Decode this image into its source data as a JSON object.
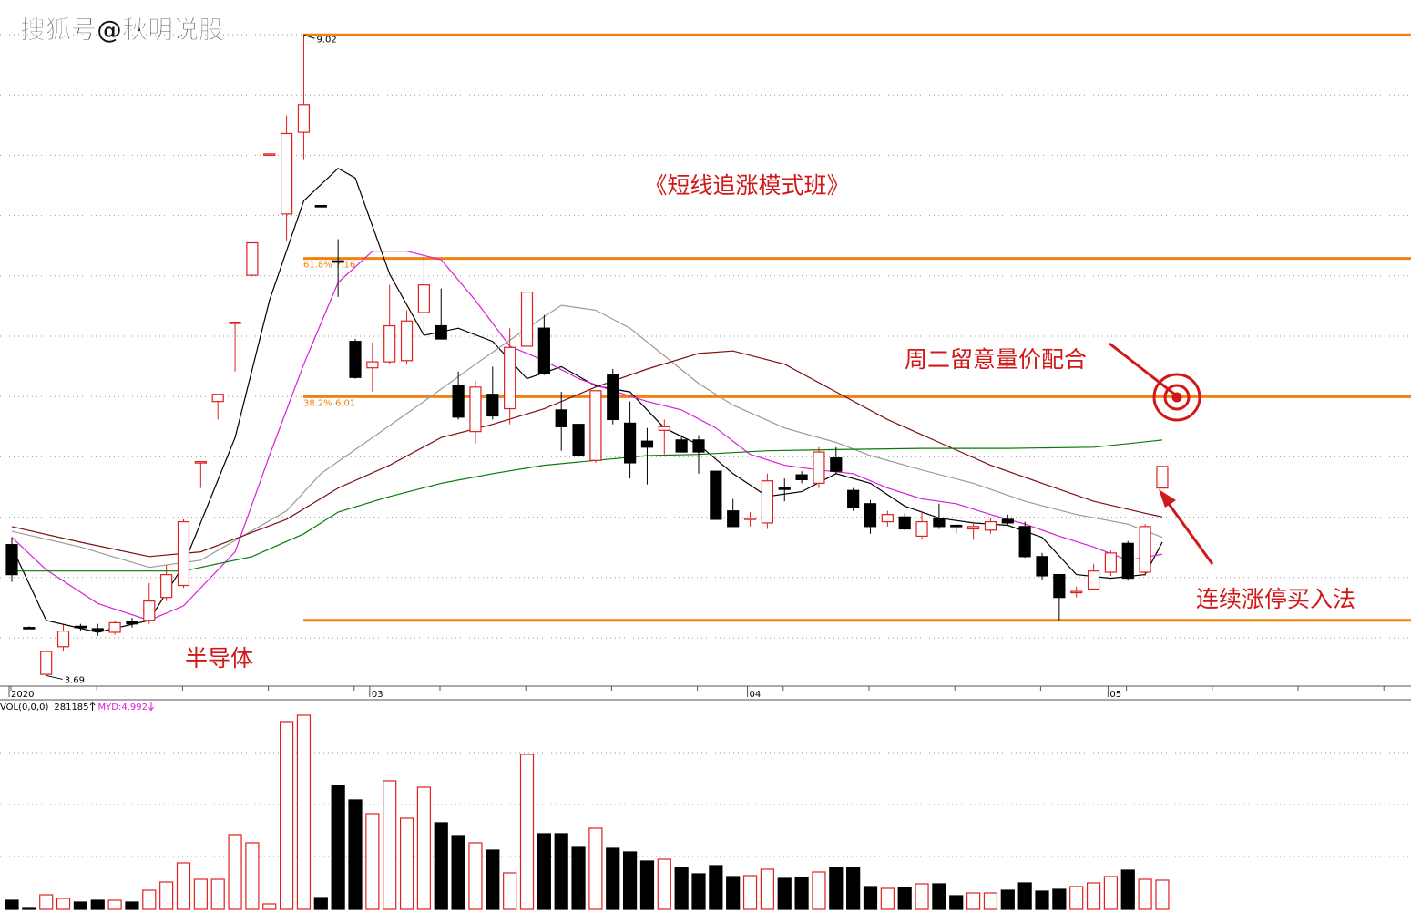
{
  "watermark": "搜狐号@秋明说股",
  "annotations": {
    "course": "《短线追涨模式班》",
    "tuesday": "周二留意量价配合",
    "sector": "半导体",
    "method": "连续涨停买入法"
  },
  "chart_data": {
    "type": "candlestick",
    "categories": [
      "2020",
      null,
      null,
      null,
      null,
      null,
      null,
      null,
      null,
      null,
      null,
      null,
      null,
      null,
      null,
      null,
      null,
      null,
      null,
      null,
      null,
      "03",
      null,
      null,
      null,
      null,
      null,
      null,
      null,
      null,
      null,
      null,
      null,
      null,
      null,
      null,
      null,
      null,
      null,
      null,
      null,
      null,
      null,
      "04",
      null,
      null,
      null,
      null,
      null,
      null,
      null,
      null,
      null,
      null,
      null,
      null,
      null,
      null,
      null,
      null,
      null,
      null,
      null,
      null,
      "05",
      null,
      null,
      null
    ],
    "candles": {
      "open": [
        4.78,
        4.09,
        3.7,
        3.93,
        4.1,
        4.08,
        4.05,
        4.14,
        4.15,
        4.34,
        4.44,
        5.47,
        5.97,
        6.63,
        7.02,
        8.03,
        7.53,
        8.21,
        7.6,
        7.14,
        6.47,
        6.25,
        6.3,
        6.31,
        6.71,
        6.6,
        6.1,
        5.72,
        6.03,
        5.91,
        6.43,
        6.58,
        5.9,
        5.78,
        5.48,
        6.19,
        5.79,
        5.64,
        5.73,
        5.65,
        5.65,
        5.39,
        5.06,
        4.99,
        4.96,
        5.25,
        5.36,
        5.29,
        5.5,
        5.23,
        5.12,
        4.97,
        5.01,
        4.85,
        5.0,
        4.94,
        4.91,
        4.9,
        4.99,
        4.93,
        4.68,
        4.53,
        4.38,
        4.41,
        4.55,
        4.79,
        4.55,
        5.25
      ],
      "high": [
        4.84,
        4.1,
        3.91,
        4.11,
        4.12,
        4.12,
        4.15,
        4.17,
        4.46,
        4.61,
        4.99,
        5.47,
        6.03,
        6.63,
        7.29,
        8.03,
        8.35,
        9.02,
        7.6,
        7.32,
        6.49,
        6.46,
        6.94,
        6.73,
        7.19,
        6.91,
        6.22,
        6.14,
        6.26,
        6.58,
        7.06,
        6.69,
        6.05,
        5.78,
        6.06,
        6.24,
        5.97,
        5.75,
        5.82,
        5.69,
        5.69,
        5.39,
        5.16,
        5.05,
        5.37,
        5.33,
        5.39,
        5.59,
        5.59,
        5.25,
        5.15,
        5.06,
        5.04,
        5.06,
        5.12,
        4.95,
        4.97,
        5.0,
        5.03,
        4.97,
        4.71,
        4.53,
        4.43,
        4.62,
        4.73,
        4.81,
        4.95,
        5.43
      ],
      "low": [
        4.47,
        4.09,
        3.69,
        3.89,
        4.06,
        4.02,
        4.03,
        4.09,
        4.12,
        4.31,
        4.42,
        5.25,
        5.82,
        6.22,
        7.01,
        8.03,
        7.3,
        7.98,
        7.6,
        6.84,
        6.16,
        6.05,
        6.28,
        6.28,
        6.54,
        6.49,
        5.82,
        5.62,
        5.82,
        5.78,
        6.4,
        6.19,
        5.56,
        5.52,
        5.46,
        5.78,
        5.33,
        5.28,
        5.53,
        5.55,
        5.37,
        4.99,
        4.93,
        4.93,
        4.91,
        5.14,
        5.29,
        5.25,
        5.37,
        5.06,
        4.87,
        4.93,
        4.9,
        4.82,
        4.91,
        4.87,
        4.82,
        4.87,
        4.94,
        4.67,
        4.49,
        4.15,
        4.34,
        4.4,
        4.52,
        4.48,
        4.52,
        5.25
      ],
      "close": [
        4.53,
        4.09,
        3.89,
        4.06,
        4.09,
        4.07,
        4.13,
        4.12,
        4.31,
        4.53,
        4.97,
        5.47,
        6.03,
        6.63,
        7.29,
        8.03,
        8.2,
        8.44,
        7.6,
        7.13,
        6.17,
        6.3,
        6.6,
        6.64,
        6.94,
        6.49,
        5.84,
        6.09,
        5.85,
        6.42,
        6.88,
        6.2,
        5.76,
        5.52,
        6.06,
        5.82,
        5.46,
        5.59,
        5.76,
        5.55,
        5.55,
        4.99,
        4.93,
        5.0,
        5.31,
        5.25,
        5.32,
        5.55,
        5.39,
        5.09,
        4.93,
        5.03,
        4.91,
        4.97,
        4.93,
        4.93,
        4.93,
        4.97,
        4.96,
        4.68,
        4.52,
        4.34,
        4.39,
        4.56,
        4.71,
        4.5,
        4.93,
        5.43
      ]
    },
    "up_color": "#e02020",
    "down_color": "#000000",
    "max": 9.02,
    "min": 3.69,
    "ylim": [
      3.61,
      9.31
    ],
    "level_color": "#f0820f",
    "levels": [
      {
        "value": 9.02
      },
      {
        "value": 7.16,
        "label": "61.8% 7.16"
      },
      {
        "value": 6.01,
        "label": "38.2% 6.01"
      },
      {
        "value": 4.15
      }
    ],
    "series": [
      {
        "color": "#000000",
        "x": [
          0,
          2,
          5,
          8,
          10,
          13,
          15,
          17,
          19,
          20,
          22,
          24,
          26,
          28,
          30,
          32,
          34,
          36,
          38,
          40,
          42,
          44,
          46,
          48,
          50,
          52,
          54,
          56,
          58,
          60,
          62,
          64,
          66,
          67
        ],
        "values": [
          4.76,
          4.15,
          4.05,
          4.15,
          4.61,
          5.67,
          6.81,
          7.64,
          7.91,
          7.83,
          7.03,
          6.52,
          6.58,
          6.47,
          6.16,
          6.26,
          6.1,
          6.05,
          5.75,
          5.61,
          5.37,
          5.18,
          5.22,
          5.37,
          5.29,
          5.1,
          5.0,
          4.96,
          4.94,
          4.84,
          4.53,
          4.5,
          4.53,
          4.8
        ]
      },
      {
        "color": "#d81ed8",
        "x": [
          0,
          2,
          5,
          8,
          10,
          13,
          15,
          17,
          19,
          21,
          23,
          25,
          27,
          29,
          31,
          33,
          35,
          37,
          39,
          41,
          43,
          45,
          47,
          49,
          51,
          53,
          55,
          57,
          59,
          61,
          63,
          65,
          67
        ],
        "values": [
          4.84,
          4.57,
          4.29,
          4.15,
          4.27,
          4.72,
          5.52,
          6.28,
          6.96,
          7.22,
          7.22,
          7.15,
          6.81,
          6.43,
          6.31,
          6.16,
          6.06,
          5.97,
          5.9,
          5.75,
          5.53,
          5.44,
          5.4,
          5.37,
          5.25,
          5.16,
          5.12,
          5.03,
          4.95,
          4.85,
          4.76,
          4.65,
          4.7
        ]
      },
      {
        "color": "#9a9a9a",
        "x": [
          0,
          4,
          8,
          11,
          16,
          18,
          21,
          24,
          27,
          30,
          32,
          34,
          36,
          38,
          40,
          42,
          45,
          48,
          50,
          53,
          56,
          59,
          62,
          65,
          67
        ],
        "values": [
          4.89,
          4.76,
          4.59,
          4.65,
          5.06,
          5.37,
          5.67,
          5.97,
          6.28,
          6.58,
          6.77,
          6.73,
          6.58,
          6.35,
          6.12,
          5.94,
          5.75,
          5.63,
          5.52,
          5.4,
          5.29,
          5.14,
          5.03,
          4.95,
          4.84
        ]
      },
      {
        "color": "#7a1010",
        "x": [
          0,
          4,
          8,
          11,
          16,
          19,
          22,
          25,
          28,
          31,
          34,
          37,
          40,
          42,
          45,
          48,
          51,
          54,
          57,
          60,
          63,
          66,
          67
        ],
        "values": [
          4.93,
          4.8,
          4.68,
          4.72,
          4.99,
          5.25,
          5.44,
          5.67,
          5.78,
          5.91,
          6.09,
          6.24,
          6.37,
          6.39,
          6.28,
          6.05,
          5.82,
          5.63,
          5.44,
          5.29,
          5.14,
          5.04,
          5.01
        ]
      },
      {
        "color": "#0a7a0a",
        "x": [
          0,
          10,
          14,
          17,
          19,
          22,
          25,
          28,
          31,
          34,
          37,
          40,
          44,
          48,
          53,
          58,
          63,
          67
        ],
        "values": [
          4.56,
          4.56,
          4.68,
          4.87,
          5.05,
          5.18,
          5.29,
          5.37,
          5.44,
          5.48,
          5.52,
          5.53,
          5.56,
          5.57,
          5.58,
          5.58,
          5.59,
          5.65
        ]
      }
    ],
    "volume": {
      "label": "VOL(0,0,0)",
      "indicator": "MYD:4.992",
      "indicator_color": "#d81ed8",
      "ylim": [
        0,
        2003000
      ],
      "values": [
        87870,
        17574,
        140592,
        105444,
        70296,
        87870,
        87870,
        70296,
        184527,
        263610,
        448137,
        289971,
        289971,
        720534,
        641451,
        52722,
        1810122,
        1871631,
        114231,
        1195032,
        1054440,
        922635,
        1238967,
        878700,
        1177458,
        834765,
        711747,
        641451,
        571155,
        351480,
        1493790,
        729321,
        729321,
        597516,
        782043,
        588729,
        553581,
        465711,
        483285,
        404202,
        342693,
        421776,
        316332,
        325119,
        386628,
        298758,
        307545,
        360267,
        404202,
        404202,
        219675,
        202101,
        210888,
        246036,
        246036,
        131805,
        158166,
        158166,
        184527,
        254823,
        175740,
        193314,
        219675,
        254823,
        316332,
        377841,
        290000,
        281185
      ]
    }
  }
}
